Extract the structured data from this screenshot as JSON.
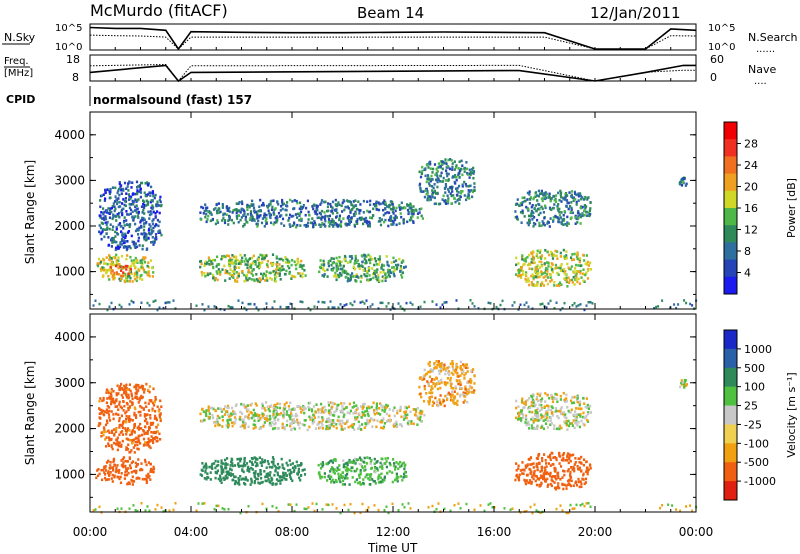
{
  "header": {
    "station": "McMurdo (fitACF)",
    "beam": "Beam 14",
    "date": "12/Jan/2011"
  },
  "sky_panel": {
    "left_label": "N.Sky",
    "right_label": "N.Search",
    "right_dots": "......",
    "ticks_left": [
      "10^5",
      "10^0"
    ],
    "ticks_right": [
      "10^5",
      "10^0"
    ]
  },
  "freq_panel": {
    "left_label_1": "Freq.",
    "left_label_2": "[MHz]",
    "right_label": "Nave",
    "right_dots": "....",
    "ticks_left": [
      "18",
      "8"
    ],
    "ticks_right": [
      "60",
      "0"
    ]
  },
  "cpid": {
    "label": "CPID",
    "value": "normalsound (fast) 157"
  },
  "x_axis": {
    "label": "Time UT",
    "ticks": [
      "00:00",
      "04:00",
      "08:00",
      "12:00",
      "16:00",
      "20:00",
      "00:00"
    ]
  },
  "colors": {
    "power_scale": [
      "#1b1bf0",
      "#2544b8",
      "#2f6fa0",
      "#2e8a5a",
      "#4db848",
      "#cfd826",
      "#f0a020",
      "#f07020",
      "#f03020",
      "#f00000"
    ],
    "velocity_scale": [
      "#e02010",
      "#f06010",
      "#f0a010",
      "#f0d050",
      "#c8c8c8",
      "#50c040",
      "#2e8a5a",
      "#2a60a8",
      "#1a28c8"
    ],
    "gap_grey": "#c8c8c8"
  },
  "chart_data": [
    {
      "type": "line",
      "title": "N.Sky / N.Search",
      "y_scale": "log",
      "ylim": [
        1,
        100000
      ],
      "x": [
        "00:00",
        "01:00",
        "02:00",
        "03:00",
        "03:30",
        "04:00",
        "06:00",
        "08:00",
        "10:00",
        "12:00",
        "14:00",
        "16:00",
        "18:00",
        "20:00",
        "22:00",
        "23:00",
        "24:00"
      ],
      "series": [
        {
          "name": "N.Sky",
          "values": [
            30000,
            20000,
            20000,
            8000,
            1,
            4000,
            3000,
            2500,
            2500,
            3000,
            3500,
            3000,
            2500,
            1,
            1,
            15000,
            8000
          ]
        },
        {
          "name": "N.Search",
          "values": [
            800,
            600,
            500,
            300,
            1,
            300,
            300,
            300,
            300,
            300,
            300,
            300,
            300,
            1,
            1,
            600,
            500
          ]
        }
      ]
    },
    {
      "type": "line",
      "title": "Freq. / Nave",
      "ylim": [
        8,
        18
      ],
      "x": [
        "00:00",
        "03:00",
        "03:30",
        "04:00",
        "16:30",
        "17:00",
        "20:00",
        "22:00",
        "23:30",
        "24:00"
      ],
      "series": [
        {
          "name": "Freq. [MHz]",
          "values": [
            11.3,
            14.0,
            8,
            11.3,
            12.0,
            12.0,
            8,
            11.3,
            14.0,
            14.0
          ]
        },
        {
          "name": "Nave",
          "values": [
            35,
            38,
            0,
            35,
            36,
            36,
            0,
            20,
            25,
            25
          ]
        }
      ]
    },
    {
      "type": "heatmap",
      "title": "Power [dB]",
      "xlabel": "Time UT",
      "ylabel": "Slant Range [km]",
      "xlim": [
        0,
        24
      ],
      "ylim": [
        180,
        4500
      ],
      "yticks": [
        1000,
        2000,
        3000,
        4000
      ],
      "colorbar": {
        "label": "Power [dB]",
        "ticks": [
          4,
          8,
          12,
          16,
          20,
          24,
          28
        ],
        "range": [
          0,
          30
        ]
      },
      "regions": [
        {
          "t0": 0.2,
          "t1": 2.5,
          "r0": 800,
          "r1": 1400,
          "value": 16
        },
        {
          "t0": 0.6,
          "t1": 1.6,
          "r0": 900,
          "r1": 1200,
          "value": 22
        },
        {
          "t0": 0.3,
          "t1": 2.8,
          "r0": 1500,
          "r1": 3000,
          "value": 6
        },
        {
          "t0": 4.3,
          "t1": 13.2,
          "r0": 2000,
          "r1": 2600,
          "value": 8
        },
        {
          "t0": 4.3,
          "t1": 8.5,
          "r0": 800,
          "r1": 1400,
          "value": 14
        },
        {
          "t0": 9.0,
          "t1": 12.5,
          "r0": 800,
          "r1": 1400,
          "value": 12
        },
        {
          "t0": 13.0,
          "t1": 15.2,
          "r0": 2500,
          "r1": 3500,
          "value": 9
        },
        {
          "t0": 16.8,
          "t1": 19.8,
          "r0": 2000,
          "r1": 2800,
          "value": 9
        },
        {
          "t0": 16.8,
          "t1": 19.8,
          "r0": 700,
          "r1": 1500,
          "value": 16
        },
        {
          "t0": 23.3,
          "t1": 23.6,
          "r0": 2900,
          "r1": 3100,
          "value": 8
        }
      ]
    },
    {
      "type": "heatmap",
      "title": "Velocity [m s^-1]",
      "xlabel": "Time UT",
      "ylabel": "Slant Range [km]",
      "xlim": [
        0,
        24
      ],
      "ylim": [
        180,
        4500
      ],
      "yticks": [
        1000,
        2000,
        3000,
        4000
      ],
      "colorbar": {
        "label": "Velocity [m s⁻¹]",
        "ticks": [
          "1000",
          "500",
          "100",
          "25",
          "-25",
          "-100",
          "-500",
          "-1000"
        ]
      },
      "regions": [
        {
          "t0": 0.2,
          "t1": 2.5,
          "r0": 800,
          "r1": 1400,
          "value": -300
        },
        {
          "t0": 0.3,
          "t1": 2.8,
          "r0": 1500,
          "r1": 3000,
          "value": -150
        },
        {
          "t0": 4.3,
          "t1": 13.2,
          "r0": 2000,
          "r1": 2600,
          "value": 0
        },
        {
          "t0": 4.3,
          "t1": 8.5,
          "r0": 800,
          "r1": 1400,
          "value": 300
        },
        {
          "t0": 9.0,
          "t1": 12.5,
          "r0": 800,
          "r1": 1400,
          "value": 80
        },
        {
          "t0": 13.0,
          "t1": 15.2,
          "r0": 2500,
          "r1": 3500,
          "value": -60
        },
        {
          "t0": 16.8,
          "t1": 19.8,
          "r0": 2000,
          "r1": 2800,
          "value": 0
        },
        {
          "t0": 16.8,
          "t1": 19.8,
          "r0": 700,
          "r1": 1500,
          "value": -350
        },
        {
          "t0": 23.3,
          "t1": 23.6,
          "r0": 2900,
          "r1": 3100,
          "value": 0
        }
      ]
    }
  ]
}
